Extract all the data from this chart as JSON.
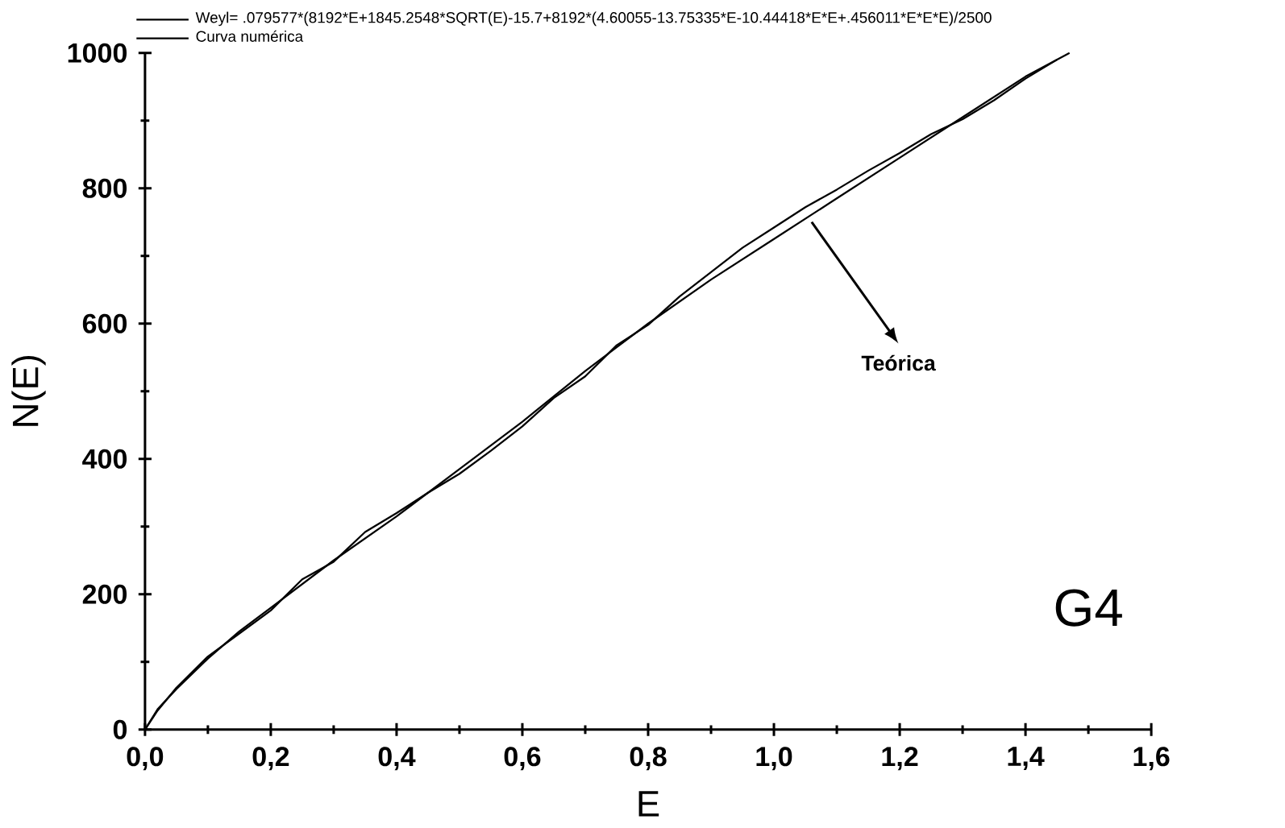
{
  "chart_data": {
    "type": "line",
    "xlabel": "E",
    "ylabel": "N(E)",
    "xlim": [
      0,
      1.6
    ],
    "ylim": [
      0,
      1000
    ],
    "xticks": [
      {
        "value": 0,
        "label": "0,0"
      },
      {
        "value": 0.2,
        "label": "0,2"
      },
      {
        "value": 0.4,
        "label": "0,4"
      },
      {
        "value": 0.6,
        "label": "0,6"
      },
      {
        "value": 0.8,
        "label": "0,8"
      },
      {
        "value": 1.0,
        "label": "1,0"
      },
      {
        "value": 1.2,
        "label": "1,2"
      },
      {
        "value": 1.4,
        "label": "1,4"
      },
      {
        "value": 1.6,
        "label": "1,6"
      }
    ],
    "yticks": [
      0,
      200,
      400,
      600,
      800,
      1000
    ],
    "legend": "top",
    "grid": false,
    "marker": "none",
    "line_style": "solid",
    "series": [
      {
        "name": "Weyl= .079577*(8192*E+1845.2548*SQRT(E)-15.7+8192*(4.60055-13.75335*E-10.44418*E*E+.456011*E*E*E)/2500",
        "color": "#000000",
        "x": [
          0,
          0.02,
          0.05,
          0.1,
          0.15,
          0.2,
          0.3,
          0.4,
          0.5,
          0.6,
          0.7,
          0.8,
          0.9,
          1.0,
          1.1,
          1.2,
          1.3,
          1.4,
          1.47
        ],
        "values": [
          0,
          30,
          60,
          105,
          145,
          180,
          250,
          315,
          385,
          455,
          530,
          600,
          665,
          725,
          785,
          845,
          905,
          965,
          1000
        ]
      },
      {
        "name": "Curva numérica",
        "color": "#000000",
        "x": [
          0,
          0.02,
          0.05,
          0.1,
          0.15,
          0.2,
          0.25,
          0.3,
          0.35,
          0.4,
          0.45,
          0.5,
          0.55,
          0.6,
          0.65,
          0.7,
          0.75,
          0.8,
          0.85,
          0.9,
          0.95,
          1.0,
          1.05,
          1.1,
          1.15,
          1.2,
          1.25,
          1.3,
          1.35,
          1.4,
          1.45
        ],
        "values": [
          0,
          28,
          62,
          108,
          142,
          176,
          222,
          248,
          292,
          320,
          350,
          378,
          412,
          448,
          490,
          522,
          568,
          598,
          640,
          676,
          712,
          742,
          772,
          798,
          826,
          852,
          880,
          902,
          930,
          962,
          990
        ]
      }
    ],
    "annotations": [
      {
        "text": "Teórica",
        "x": 1.06,
        "y": 750
      },
      "G4"
    ]
  }
}
